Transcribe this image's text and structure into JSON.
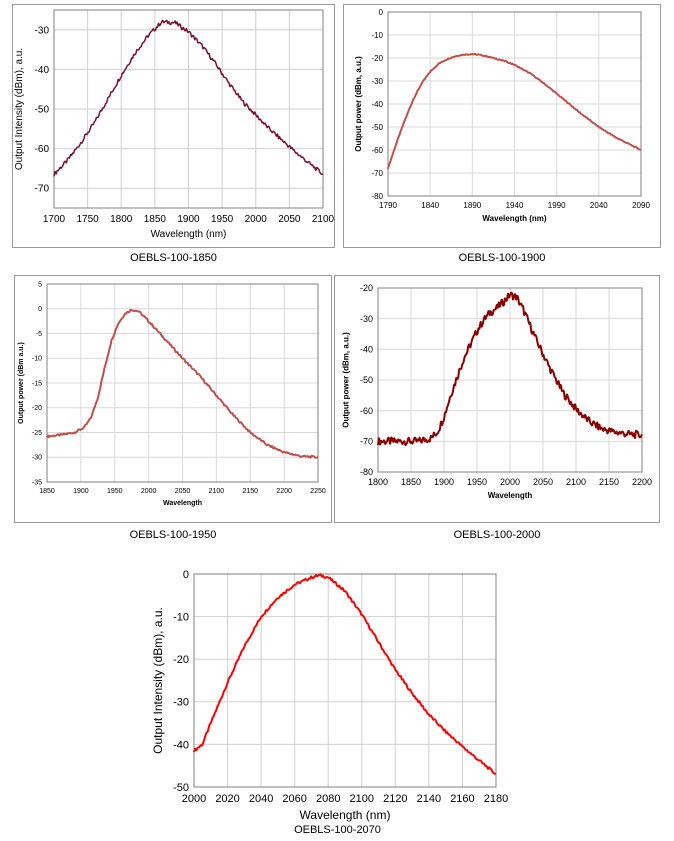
{
  "charts": [
    {
      "caption": "OEBLS-100-1850",
      "chart_data": {
        "type": "line",
        "title": "",
        "xlabel": "Wavelength (nm)",
        "ylabel": "Output Intensity (dBm), a.u.",
        "xlim": [
          1700,
          2100
        ],
        "ylim": [
          -75,
          -25
        ],
        "xticks": [
          1700,
          1750,
          1800,
          1850,
          1900,
          1950,
          2000,
          2050,
          2100
        ],
        "yticks": [
          -30,
          -40,
          -50,
          -60,
          -70
        ],
        "color": "#7a1030",
        "noise": 0.5,
        "series": [
          {
            "name": "OEBLS-100-1850",
            "x": [
              1700,
              1720,
              1740,
              1760,
              1780,
              1800,
              1820,
              1840,
              1860,
              1880,
              1900,
              1920,
              1940,
              1960,
              1980,
              2000,
              2020,
              2040,
              2060,
              2080,
              2100
            ],
            "y": [
              -66.5,
              -63,
              -58.5,
              -53.5,
              -47.5,
              -41.5,
              -36,
              -31.5,
              -28,
              -28.2,
              -30.5,
              -34,
              -38.5,
              -43.5,
              -48,
              -51.5,
              -55,
              -58,
              -61,
              -63.8,
              -66.5
            ]
          }
        ]
      }
    },
    {
      "caption": "OEBLS-100-1900",
      "chart_data": {
        "type": "line",
        "title": "",
        "xlabel": "Wavelength (nm)",
        "ylabel": "Output power (dBm, a.u.)",
        "xlim": [
          1790,
          2090
        ],
        "ylim": [
          -80,
          0
        ],
        "xticks": [
          1790,
          1840,
          1890,
          1940,
          1990,
          2040,
          2090
        ],
        "yticks": [
          0,
          -10,
          -20,
          -30,
          -40,
          -50,
          -60,
          -70,
          -80
        ],
        "color": "#c0504d",
        "noise": 0.2,
        "series": [
          {
            "name": "OEBLS-100-1900",
            "x": [
              1790,
              1800,
              1810,
              1820,
              1830,
              1840,
              1850,
              1860,
              1870,
              1880,
              1890,
              1900,
              1910,
              1920,
              1930,
              1940,
              1960,
              1980,
              2000,
              2020,
              2040,
              2060,
              2090
            ],
            "y": [
              -68,
              -57,
              -47,
              -38,
              -31,
              -26,
              -22.5,
              -20.5,
              -19.2,
              -18.5,
              -18.3,
              -18.7,
              -19.5,
              -20.5,
              -21.5,
              -23,
              -27,
              -32.5,
              -38.5,
              -44.5,
              -50,
              -54.5,
              -60
            ]
          }
        ]
      }
    },
    {
      "caption": "OEBLS-100-1950",
      "chart_data": {
        "type": "line",
        "title": "",
        "xlabel": "Wavelength",
        "ylabel": "Output power (dBm a.u.)",
        "xlim": [
          1850,
          2250
        ],
        "ylim": [
          -35,
          5
        ],
        "xticks": [
          1850,
          1900,
          1950,
          2000,
          2050,
          2100,
          2150,
          2200,
          2250
        ],
        "yticks": [
          5,
          0,
          -5,
          -10,
          -15,
          -20,
          -25,
          -30,
          -35
        ],
        "color": "#c0504d",
        "noise": 0.2,
        "series": [
          {
            "name": "OEBLS-100-1950",
            "x": [
              1850,
              1870,
              1890,
              1905,
              1915,
              1925,
              1935,
              1945,
              1955,
              1965,
              1975,
              1985,
              1995,
              2010,
              2030,
              2050,
              2075,
              2100,
              2125,
              2150,
              2175,
              2200,
              2225,
              2250
            ],
            "y": [
              -25.8,
              -25.5,
              -25,
              -24,
              -22,
              -18,
              -12,
              -6.5,
              -3,
              -1,
              -0.2,
              -0.5,
              -1.8,
              -4,
              -7,
              -10,
              -13.5,
              -17.5,
              -21.5,
              -25,
              -27.5,
              -29,
              -29.8,
              -30
            ]
          }
        ]
      }
    },
    {
      "caption": "OEBLS-100-2000",
      "chart_data": {
        "type": "line",
        "title": "",
        "xlabel": "Wavelength",
        "ylabel": "Output power (dBm, a.u.)",
        "xlim": [
          1800,
          2200
        ],
        "ylim": [
          -80,
          -20
        ],
        "xticks": [
          1800,
          1850,
          1900,
          1950,
          2000,
          2050,
          2100,
          2150,
          2200
        ],
        "yticks": [
          -20,
          -30,
          -40,
          -50,
          -60,
          -70,
          -80
        ],
        "color": "#8b0000",
        "noise": 1.2,
        "series": [
          {
            "name": "OEBLS-100-2000",
            "x": [
              1800,
              1820,
              1840,
              1860,
              1880,
              1890,
              1900,
              1910,
              1920,
              1930,
              1940,
              1950,
              1960,
              1970,
              1980,
              1990,
              2000,
              2010,
              2020,
              2030,
              2040,
              2060,
              2080,
              2100,
              2120,
              2140,
              2160,
              2180,
              2200
            ],
            "y": [
              -70,
              -70,
              -70,
              -70,
              -69,
              -67,
              -62,
              -55,
              -49,
              -43,
              -38.5,
              -34,
              -30.5,
              -28,
              -26.5,
              -24.5,
              -22.2,
              -23,
              -27,
              -32,
              -37,
              -46,
              -54,
              -59.5,
              -63.5,
              -66,
              -67,
              -67.7,
              -68
            ]
          }
        ]
      }
    },
    {
      "caption": "OEBLS-100-2070",
      "chart_data": {
        "type": "line",
        "title": "",
        "xlabel": "Wavelength (nm)",
        "ylabel": "Output Intensity (dBm), a.u.",
        "xlim": [
          2000,
          2180
        ],
        "ylim": [
          -50,
          0
        ],
        "xticks": [
          2000,
          2020,
          2040,
          2060,
          2080,
          2100,
          2120,
          2140,
          2160,
          2180
        ],
        "yticks": [
          0,
          -10,
          -20,
          -30,
          -40,
          -50
        ],
        "color": "#ff0000",
        "noise": 0.3,
        "series": [
          {
            "name": "OEBLS-100-2070",
            "x": [
              2000,
              2005,
              2010,
              2020,
              2030,
              2040,
              2050,
              2060,
              2070,
              2075,
              2080,
              2090,
              2100,
              2110,
              2120,
              2130,
              2140,
              2150,
              2160,
              2170,
              2180
            ],
            "y": [
              -41.5,
              -40,
              -35,
              -25.5,
              -17,
              -10,
              -5.5,
              -2.5,
              -0.8,
              -0.3,
              -0.8,
              -4,
              -9.5,
              -16,
              -22.5,
              -28,
              -33,
              -37,
              -40.5,
              -43.8,
              -47
            ]
          }
        ]
      }
    }
  ]
}
